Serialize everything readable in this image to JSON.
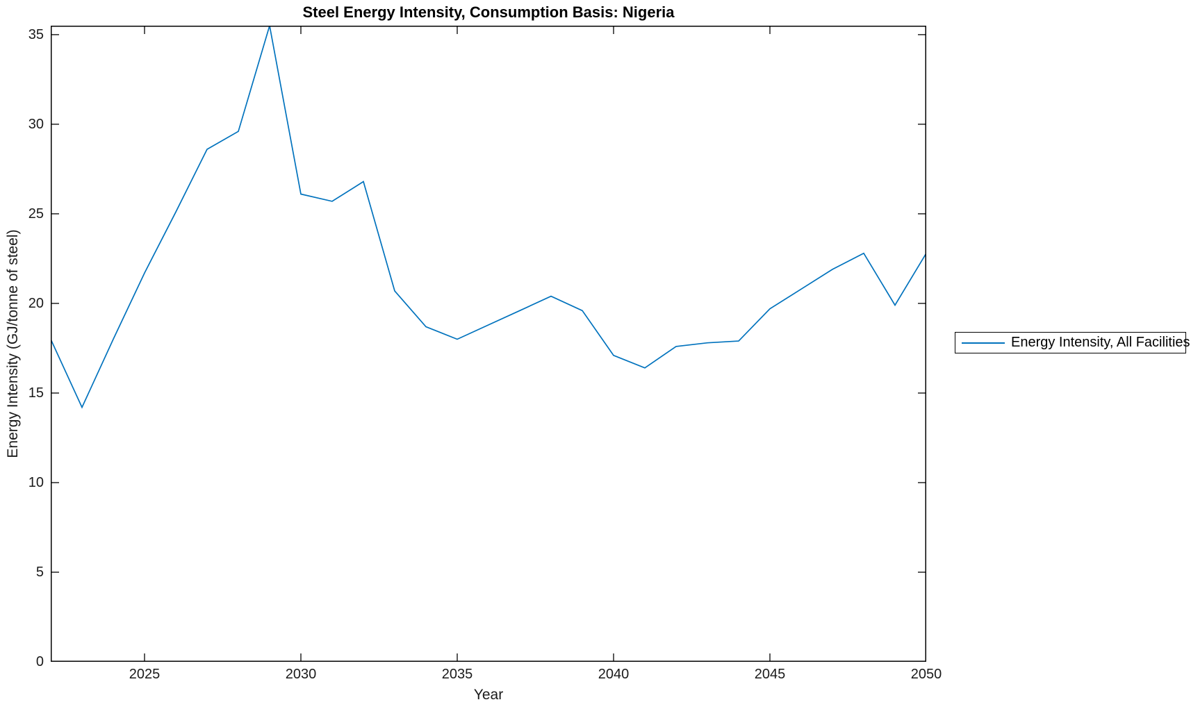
{
  "figure": {
    "title": "Steel Energy Intensity, Consumption Basis: Nigeria",
    "xlabel": "Year",
    "ylabel": "Energy Intensity (GJ/tonne of steel)",
    "legend": {
      "label": "Energy Intensity, All Facilities"
    }
  },
  "chart_data": {
    "type": "line",
    "title": "Steel Energy Intensity, Consumption Basis: Nigeria",
    "xlabel": "Year",
    "ylabel": "Energy Intensity (GJ/tonne of steel)",
    "xlim": [
      2022,
      2050
    ],
    "ylim": [
      0,
      35.5
    ],
    "xticks": [
      2025,
      2030,
      2035,
      2040,
      2045,
      2050
    ],
    "yticks": [
      0,
      5,
      10,
      15,
      20,
      25,
      30,
      35
    ],
    "grid": false,
    "legend_position": "right-outside",
    "line_color": "#0072BD",
    "axis_color": "#000000",
    "series": [
      {
        "name": "Energy Intensity, All Facilities",
        "x": [
          2022,
          2023,
          2024,
          2025,
          2026,
          2027,
          2028,
          2029,
          2030,
          2031,
          2032,
          2033,
          2034,
          2035,
          2036,
          2037,
          2038,
          2039,
          2040,
          2041,
          2042,
          2043,
          2044,
          2045,
          2046,
          2047,
          2048,
          2049,
          2050
        ],
        "values": [
          18.0,
          14.2,
          18.0,
          21.7,
          25.1,
          28.6,
          29.6,
          35.5,
          26.1,
          25.7,
          26.8,
          20.7,
          18.7,
          18.0,
          18.8,
          19.6,
          20.4,
          19.6,
          17.1,
          16.4,
          17.6,
          17.8,
          17.9,
          19.7,
          20.8,
          21.9,
          22.8,
          19.9,
          22.8
        ]
      }
    ]
  }
}
